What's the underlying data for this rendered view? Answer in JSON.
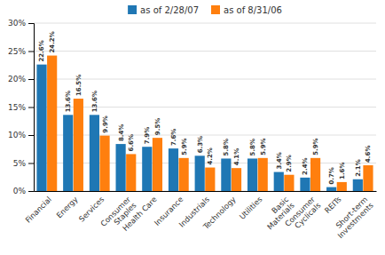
{
  "chart_data": {
    "type": "bar",
    "categories": [
      "Financial",
      "Energy",
      "Services",
      "Consumer\nStaples",
      "Health Care",
      "Insurance",
      "Industrials",
      "Technology",
      "Utilities",
      "Basic\nMaterials",
      "Consumer\nCyclicals",
      "REITs",
      "Short-term\nInvestments"
    ],
    "series": [
      {
        "name": "as of 2/28/07",
        "values": [
          22.6,
          13.6,
          13.6,
          8.4,
          7.9,
          7.6,
          6.3,
          5.8,
          5.8,
          3.4,
          2.4,
          0.7,
          2.1
        ],
        "value_labels": [
          "22.6%",
          "13.6%",
          "13.6%",
          "8.4%",
          "7.9%",
          "7.6%",
          "6.3%",
          "5.8%",
          "5.8%",
          "3.4%",
          "2.4%",
          "0.7%",
          "2.1%"
        ]
      },
      {
        "name": "as of 8/31/06",
        "values": [
          24.2,
          16.5,
          9.9,
          6.6,
          9.5,
          5.9,
          4.2,
          4.1,
          5.9,
          2.9,
          5.9,
          1.6,
          4.6
        ],
        "value_labels": [
          "24.2%",
          "16.5%",
          "9.9%",
          "6.6%",
          "9.5%",
          "5.9%",
          "4.2%",
          "4.1%",
          "5.9%",
          "2.9%",
          "5.9%",
          "1.6%",
          "4.6%"
        ]
      }
    ],
    "ylim": [
      0,
      30
    ],
    "yticks": [
      {
        "value": 0,
        "label": "0%"
      },
      {
        "value": 5,
        "label": "5%"
      },
      {
        "value": 10,
        "label": "10%"
      },
      {
        "value": 15,
        "label": "15%"
      },
      {
        "value": 20,
        "label": "20%"
      },
      {
        "value": 25,
        "label": "25%"
      },
      {
        "value": 30,
        "label": "30%"
      }
    ],
    "grid": true,
    "legend": "top",
    "data_labels": true
  }
}
